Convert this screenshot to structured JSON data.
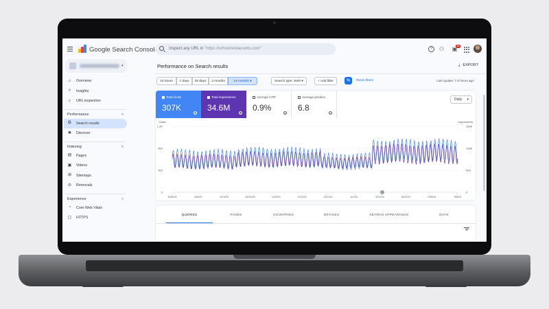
{
  "app": {
    "brand": "Google Search Console",
    "search_placeholder": "Inspect any URL in",
    "search_domain": "\"https://schoolrestaurants.com\"",
    "notification_count": "10"
  },
  "sidebar": {
    "sections": [
      {
        "items": [
          {
            "label": "Overview",
            "icon": "home-icon"
          },
          {
            "label": "Insights",
            "icon": "insights-icon"
          },
          {
            "label": "URL inspection",
            "icon": "search-icon"
          }
        ]
      },
      {
        "title": "Performance",
        "items": [
          {
            "label": "Search results",
            "icon": "google-g-icon",
            "active": true
          },
          {
            "label": "Discover",
            "icon": "discover-icon"
          }
        ]
      },
      {
        "title": "Indexing",
        "items": [
          {
            "label": "Pages",
            "icon": "pages-icon"
          },
          {
            "label": "Videos",
            "icon": "videos-icon"
          },
          {
            "label": "Sitemaps",
            "icon": "sitemaps-icon"
          },
          {
            "label": "Removals",
            "icon": "removals-icon"
          }
        ]
      },
      {
        "title": "Experience",
        "items": [
          {
            "label": "Core Web Vitals",
            "icon": "speed-icon"
          },
          {
            "label": "HTTPS",
            "icon": "lock-icon"
          }
        ]
      }
    ]
  },
  "main": {
    "title": "Performance on Search results",
    "export_label": "EXPORT",
    "ranges": [
      "24 hours",
      "7 days",
      "28 days",
      "3 months",
      "16 months"
    ],
    "selected_range": "16 months",
    "search_type_chip": "Search type: Web",
    "add_filter_chip": "+ Add filter",
    "reset_label": "Reset filters",
    "last_update": "Last update: 7.5 hours ago",
    "granularity": "Daily"
  },
  "metrics": [
    {
      "label": "Total clicks",
      "value": "307K",
      "selected": true,
      "color": "#4285f4"
    },
    {
      "label": "Total impressions",
      "value": "34.6M",
      "selected": true,
      "color": "#5e35b1"
    },
    {
      "label": "Average CTR",
      "value": "0.9%",
      "selected": false,
      "color": "#ffffff"
    },
    {
      "label": "Average position",
      "value": "6.8",
      "selected": false,
      "color": "#ffffff"
    }
  ],
  "chart_data": {
    "type": "line",
    "left_axis": {
      "label": "Clicks",
      "ticks": [
        "1.2K",
        "800",
        "400",
        "0"
      ],
      "range": [
        0,
        1200
      ]
    },
    "right_axis": {
      "label": "Impressions",
      "ticks": [
        "150K",
        "100K",
        "50K",
        "0"
      ],
      "range": [
        0,
        150000
      ]
    },
    "x_ticks": [
      "6/26/23",
      "8/5/23",
      "9/14/23",
      "10/24/23",
      "12/3/23",
      "1/12/24",
      "2/21/24",
      "4/1/24",
      "5/11/24",
      "6/20/24",
      "7/30/24",
      "9/8/24"
    ],
    "series": [
      {
        "name": "Clicks",
        "color": "#4285f4",
        "axis": "left",
        "segments": [
          {
            "from": 0,
            "to": 0.22,
            "base": 600,
            "amp": 190
          },
          {
            "from": 0.22,
            "to": 0.52,
            "base": 640,
            "amp": 190
          },
          {
            "from": 0.52,
            "to": 0.7,
            "base": 560,
            "amp": 160
          },
          {
            "from": 0.7,
            "to": 1.0,
            "base": 760,
            "amp": 220
          }
        ]
      },
      {
        "name": "Impressions",
        "color": "#5e35b1",
        "axis": "left",
        "segments": [
          {
            "from": 0,
            "to": 0.22,
            "base": 560,
            "amp": 140
          },
          {
            "from": 0.22,
            "to": 0.52,
            "base": 600,
            "amp": 150
          },
          {
            "from": 0.52,
            "to": 0.7,
            "base": 540,
            "amp": 110
          },
          {
            "from": 0.7,
            "to": 1.0,
            "base": 700,
            "amp": 190
          }
        ]
      }
    ],
    "annotation_marker_at": "3/29/24"
  },
  "tabs": [
    "QUERIES",
    "PAGES",
    "COUNTRIES",
    "DEVICES",
    "SEARCH APPEARANCE",
    "DAYS"
  ],
  "active_tab": "QUERIES"
}
